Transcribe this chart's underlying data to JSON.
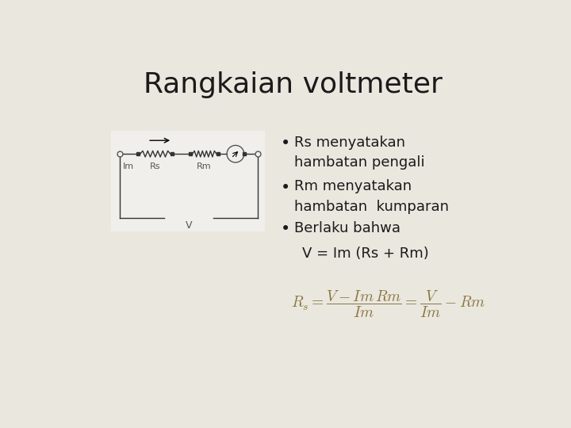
{
  "title": "Rangkaian voltmeter",
  "title_fontsize": 26,
  "bg_color": "#eae7df",
  "circuit_bg": "#f0efeb",
  "bullet_points": [
    "Rs menyatakan\nhambatan pengali",
    "Rm menyatakan\nhambatan  kumparan",
    "Berlaku bahwa"
  ],
  "inline_text": "V = Im (Rs + Rm)",
  "formula_color": "#8b7640",
  "text_color": "#1a1a1a",
  "bullet_fontsize": 13,
  "inline_fontsize": 13,
  "formula_fontsize": 14
}
